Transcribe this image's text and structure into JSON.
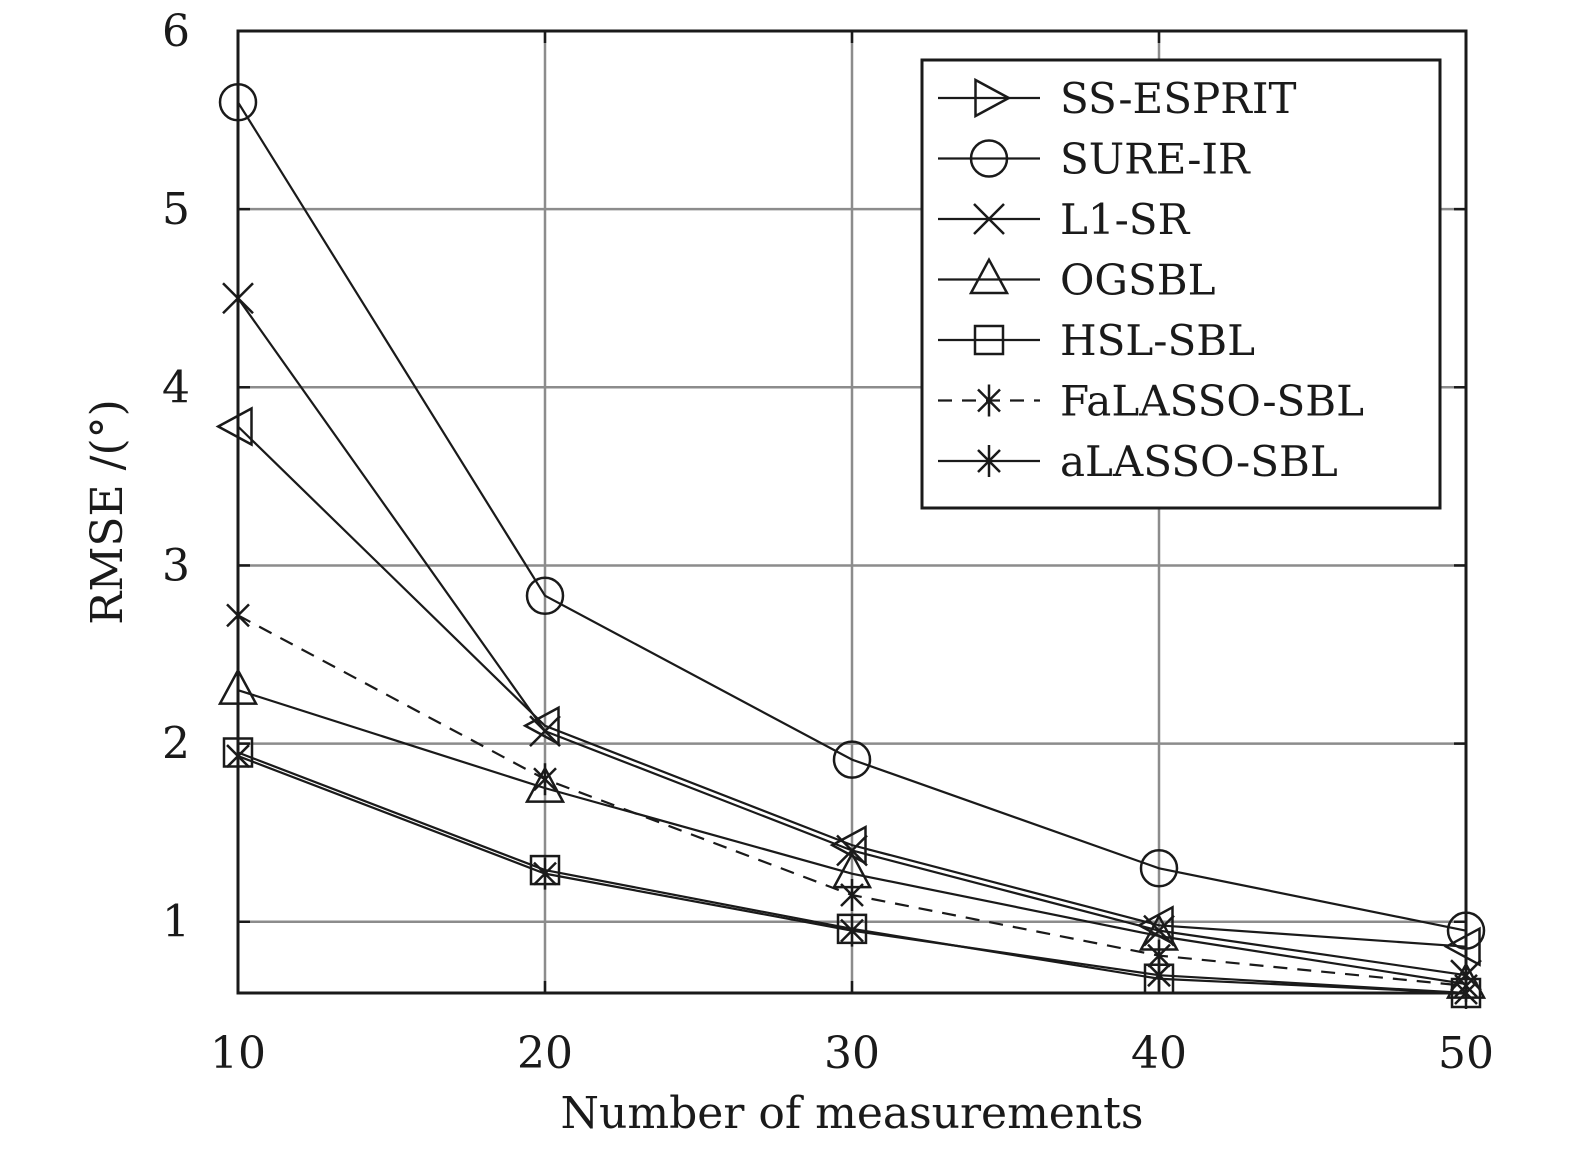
{
  "chart_data": {
    "type": "line",
    "title": "",
    "xlabel": "Number of measurements",
    "ylabel": "RMSE /(°)",
    "x": [
      10,
      20,
      30,
      40,
      50
    ],
    "xlim": [
      10,
      50
    ],
    "ylim": [
      0.6,
      6
    ],
    "xticks": [
      "10",
      "20",
      "30",
      "40",
      "50"
    ],
    "yticks": [
      "1",
      "2",
      "3",
      "4",
      "5",
      "6"
    ],
    "grid": true,
    "legend_position": "top-right",
    "series": [
      {
        "name": "SS-ESPRIT",
        "marker": "triangle-left",
        "dash": "solid",
        "values": [
          3.78,
          2.1,
          1.43,
          0.98,
          0.86
        ]
      },
      {
        "name": "SURE-IR",
        "marker": "circle",
        "dash": "solid",
        "values": [
          5.6,
          2.83,
          1.91,
          1.3,
          0.95
        ]
      },
      {
        "name": "L1-SR",
        "marker": "x",
        "dash": "solid",
        "values": [
          4.5,
          2.07,
          1.4,
          0.95,
          0.7
        ]
      },
      {
        "name": "OGSBL",
        "marker": "triangle-up",
        "dash": "solid",
        "values": [
          2.3,
          1.75,
          1.27,
          0.92,
          0.65
        ]
      },
      {
        "name": "HSL-SBL",
        "marker": "square",
        "dash": "solid",
        "values": [
          1.95,
          1.29,
          0.96,
          0.68,
          0.6
        ]
      },
      {
        "name": "FaLASSO-SBL",
        "marker": "asterisk",
        "dash": "dashed",
        "values": [
          2.72,
          1.8,
          1.15,
          0.81,
          0.64
        ]
      },
      {
        "name": "aLASSO-SBL",
        "marker": "asterisk",
        "dash": "solid",
        "values": [
          1.93,
          1.27,
          0.95,
          0.7,
          0.6
        ]
      }
    ]
  }
}
